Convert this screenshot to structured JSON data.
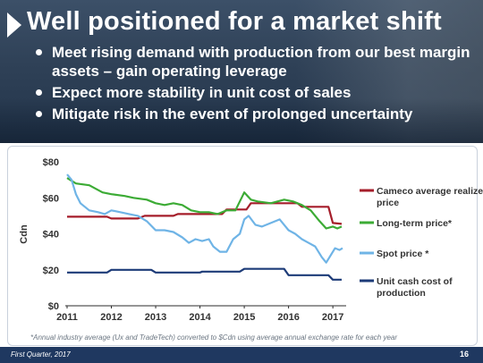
{
  "slide": {
    "title": "Well positioned for a market shift",
    "bullets": [
      "Meet rising demand with production from our best margin assets – gain operating leverage",
      "Expect more stability in unit cost of sales",
      "Mitigate risk in the event of prolonged uncertainty"
    ],
    "footnote": "*Annual industry average (Ux and TradeTech) converted to $Cdn using average annual exchange rate for each year",
    "footer_text": "First Quarter, 2017",
    "page_number": "16"
  },
  "chart_data": {
    "type": "line",
    "ylabel": "Cdn",
    "ylim": [
      0,
      80
    ],
    "yticks": [
      "$0",
      "$20",
      "$40",
      "$60",
      "$80"
    ],
    "xlim": [
      2011,
      2017.3
    ],
    "xticks": [
      "2011",
      "2012",
      "2013",
      "2014",
      "2015",
      "2016",
      "2017"
    ],
    "grid": false,
    "legend_position": "right",
    "series": [
      {
        "name": "Cameco average realized price",
        "color": "#a51d2a",
        "points": [
          [
            2011,
            49.5
          ],
          [
            2011.9,
            49.5
          ],
          [
            2012,
            48.5
          ],
          [
            2012.6,
            48.5
          ],
          [
            2012.75,
            50
          ],
          [
            2013.4,
            50
          ],
          [
            2013.5,
            51
          ],
          [
            2014.5,
            51
          ],
          [
            2014.6,
            53.5
          ],
          [
            2015.05,
            53.5
          ],
          [
            2015.15,
            57
          ],
          [
            2016.2,
            57
          ],
          [
            2016.3,
            55
          ],
          [
            2016.9,
            55
          ],
          [
            2017,
            46
          ],
          [
            2017.2,
            45.5
          ]
        ]
      },
      {
        "name": "Long-term price*",
        "color": "#3cab35",
        "points": [
          [
            2011,
            71
          ],
          [
            2011.2,
            68
          ],
          [
            2011.5,
            67
          ],
          [
            2011.8,
            63
          ],
          [
            2012,
            62
          ],
          [
            2012.3,
            61
          ],
          [
            2012.5,
            60
          ],
          [
            2012.8,
            59
          ],
          [
            2013,
            57
          ],
          [
            2013.2,
            56
          ],
          [
            2013.4,
            57
          ],
          [
            2013.6,
            56
          ],
          [
            2013.8,
            53
          ],
          [
            2014,
            52
          ],
          [
            2014.2,
            52
          ],
          [
            2014.4,
            51
          ],
          [
            2014.6,
            53
          ],
          [
            2014.8,
            53
          ],
          [
            2015,
            63
          ],
          [
            2015.15,
            59
          ],
          [
            2015.3,
            58
          ],
          [
            2015.6,
            57
          ],
          [
            2015.9,
            59
          ],
          [
            2016.1,
            58
          ],
          [
            2016.3,
            56
          ],
          [
            2016.5,
            53
          ],
          [
            2016.7,
            47
          ],
          [
            2016.85,
            43
          ],
          [
            2017,
            44
          ],
          [
            2017.1,
            43
          ],
          [
            2017.2,
            44
          ]
        ]
      },
      {
        "name": "Spot price *",
        "color": "#6fb4e6",
        "points": [
          [
            2011,
            73
          ],
          [
            2011.1,
            70
          ],
          [
            2011.2,
            62
          ],
          [
            2011.3,
            57
          ],
          [
            2011.5,
            53
          ],
          [
            2011.7,
            52
          ],
          [
            2011.85,
            51
          ],
          [
            2012,
            53
          ],
          [
            2012.2,
            52
          ],
          [
            2012.4,
            51
          ],
          [
            2012.6,
            50
          ],
          [
            2012.8,
            47
          ],
          [
            2013,
            42
          ],
          [
            2013.2,
            42
          ],
          [
            2013.4,
            41
          ],
          [
            2013.6,
            38
          ],
          [
            2013.75,
            35
          ],
          [
            2013.9,
            37
          ],
          [
            2014.05,
            36
          ],
          [
            2014.2,
            37
          ],
          [
            2014.3,
            33
          ],
          [
            2014.45,
            30
          ],
          [
            2014.6,
            30
          ],
          [
            2014.75,
            37
          ],
          [
            2014.9,
            40
          ],
          [
            2015,
            48
          ],
          [
            2015.1,
            50
          ],
          [
            2015.25,
            45
          ],
          [
            2015.4,
            44
          ],
          [
            2015.6,
            46
          ],
          [
            2015.8,
            48
          ],
          [
            2016,
            42
          ],
          [
            2016.15,
            40
          ],
          [
            2016.3,
            37
          ],
          [
            2016.45,
            35
          ],
          [
            2016.6,
            33
          ],
          [
            2016.75,
            27
          ],
          [
            2016.85,
            24
          ],
          [
            2016.95,
            28
          ],
          [
            2017.05,
            32
          ],
          [
            2017.15,
            31
          ],
          [
            2017.22,
            32
          ]
        ]
      },
      {
        "name": "Unit cash cost of production",
        "color": "#1d3b78",
        "points": [
          [
            2011,
            18.5
          ],
          [
            2011.9,
            18.5
          ],
          [
            2012,
            20
          ],
          [
            2012.9,
            20
          ],
          [
            2013,
            18.5
          ],
          [
            2014,
            18.5
          ],
          [
            2014.05,
            19
          ],
          [
            2014.9,
            19
          ],
          [
            2015,
            20.5
          ],
          [
            2015.9,
            20.5
          ],
          [
            2016,
            17
          ],
          [
            2016.9,
            17
          ],
          [
            2017,
            14.5
          ],
          [
            2017.2,
            14.5
          ]
        ]
      }
    ]
  }
}
